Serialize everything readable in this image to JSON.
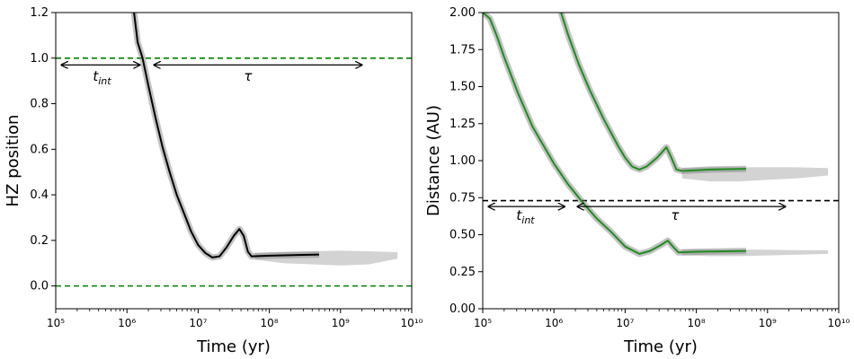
{
  "chart_data": [
    {
      "type": "line",
      "xscale": "log",
      "xlim_exp": [
        5,
        10
      ],
      "x_tick_exponents": [
        5,
        6,
        7,
        8,
        9,
        10
      ],
      "ylim": [
        -0.1,
        1.2
      ],
      "y_ticks": [
        "0.0",
        "0.2",
        "0.4",
        "0.6",
        "0.8",
        "1.0",
        "1.2"
      ],
      "xlabel": "Time (yr)",
      "ylabel": "HZ position",
      "hlines": [
        {
          "y": 1.0,
          "color": "#008000",
          "style": "dashed"
        },
        {
          "y": 0.0,
          "color": "#008000",
          "style": "dashed"
        }
      ],
      "series": [
        {
          "name": "HZ position (median track)",
          "color": "#000000",
          "points": [
            [
              6.1,
              1.2
            ],
            [
              6.15,
              1.07
            ],
            [
              6.22,
              1.0
            ],
            [
              6.3,
              0.88
            ],
            [
              6.4,
              0.74
            ],
            [
              6.5,
              0.61
            ],
            [
              6.6,
              0.5
            ],
            [
              6.7,
              0.4
            ],
            [
              6.8,
              0.32
            ],
            [
              6.9,
              0.24
            ],
            [
              7.0,
              0.18
            ],
            [
              7.1,
              0.145
            ],
            [
              7.2,
              0.125
            ],
            [
              7.3,
              0.13
            ],
            [
              7.4,
              0.17
            ],
            [
              7.5,
              0.22
            ],
            [
              7.58,
              0.25
            ],
            [
              7.64,
              0.22
            ],
            [
              7.7,
              0.15
            ],
            [
              7.75,
              0.13
            ],
            [
              8.0,
              0.133
            ],
            [
              8.4,
              0.136
            ],
            [
              8.7,
              0.138
            ]
          ]
        }
      ],
      "band": {
        "name": "ensemble spread",
        "color": "#808080",
        "x_exp": [
          7.8,
          8.2,
          8.6,
          9.0,
          9.4,
          9.8
        ],
        "lower": [
          0.115,
          0.1,
          0.095,
          0.09,
          0.095,
          0.12
        ],
        "upper": [
          0.145,
          0.15,
          0.152,
          0.155,
          0.152,
          0.148
        ]
      },
      "annotations": [
        {
          "label_main": "t",
          "label_sub": "int",
          "x_exp_from": 5.08,
          "x_exp_to": 6.18,
          "y": 0.97,
          "label_x_exp": 5.65,
          "label_y": 0.9
        },
        {
          "label_main": "τ",
          "label_sub": "",
          "x_exp_from": 6.38,
          "x_exp_to": 9.3,
          "y": 0.97,
          "label_x_exp": 7.7,
          "label_y": 0.9
        }
      ]
    },
    {
      "type": "line",
      "xscale": "log",
      "xlim_exp": [
        5,
        10
      ],
      "x_tick_exponents": [
        5,
        6,
        7,
        8,
        9,
        10
      ],
      "ylim": [
        0.0,
        2.0
      ],
      "y_ticks": [
        "0.00",
        "0.25",
        "0.50",
        "0.75",
        "1.00",
        "1.25",
        "1.50",
        "1.75",
        "2.00"
      ],
      "xlabel": "Time (yr)",
      "ylabel": "Distance (AU)",
      "hlines": [
        {
          "y": 0.73,
          "color": "#000000",
          "style": "dashed"
        }
      ],
      "series": [
        {
          "name": "outer HZ boundary",
          "color": "#228B22",
          "points": [
            [
              6.1,
              2.0
            ],
            [
              6.2,
              1.85
            ],
            [
              6.35,
              1.65
            ],
            [
              6.5,
              1.48
            ],
            [
              6.7,
              1.28
            ],
            [
              6.9,
              1.1
            ],
            [
              7.0,
              1.02
            ],
            [
              7.1,
              0.96
            ],
            [
              7.2,
              0.94
            ],
            [
              7.3,
              0.96
            ],
            [
              7.45,
              1.02
            ],
            [
              7.58,
              1.09
            ],
            [
              7.65,
              1.02
            ],
            [
              7.72,
              0.94
            ],
            [
              7.8,
              0.93
            ],
            [
              8.2,
              0.94
            ],
            [
              8.7,
              0.945
            ]
          ]
        },
        {
          "name": "inner HZ boundary",
          "color": "#228B22",
          "points": [
            [
              5.0,
              2.0
            ],
            [
              5.1,
              1.96
            ],
            [
              5.2,
              1.84
            ],
            [
              5.3,
              1.7
            ],
            [
              5.5,
              1.45
            ],
            [
              5.7,
              1.23
            ],
            [
              6.0,
              0.98
            ],
            [
              6.2,
              0.84
            ],
            [
              6.4,
              0.72
            ],
            [
              6.6,
              0.61
            ],
            [
              6.8,
              0.52
            ],
            [
              7.0,
              0.42
            ],
            [
              7.2,
              0.37
            ],
            [
              7.35,
              0.39
            ],
            [
              7.5,
              0.43
            ],
            [
              7.6,
              0.46
            ],
            [
              7.67,
              0.42
            ],
            [
              7.75,
              0.38
            ],
            [
              8.0,
              0.385
            ],
            [
              8.7,
              0.39
            ]
          ]
        }
      ],
      "band": [
        {
          "name": "ensemble spread outer",
          "color": "#808080",
          "x_exp": [
            7.8,
            8.2,
            8.6,
            9.0,
            9.4,
            9.85
          ],
          "lower": [
            0.88,
            0.86,
            0.86,
            0.87,
            0.88,
            0.9
          ],
          "upper": [
            0.95,
            0.955,
            0.955,
            0.955,
            0.955,
            0.95
          ]
        },
        {
          "name": "ensemble spread inner",
          "color": "#808080",
          "x_exp": [
            7.8,
            8.2,
            8.6,
            9.0,
            9.4,
            9.85
          ],
          "lower": [
            0.36,
            0.355,
            0.355,
            0.36,
            0.365,
            0.37
          ],
          "upper": [
            0.4,
            0.4,
            0.4,
            0.398,
            0.396,
            0.395
          ]
        }
      ],
      "annotations": [
        {
          "label_main": "t",
          "label_sub": "int",
          "x_exp_from": 5.08,
          "x_exp_to": 6.15,
          "y": 0.69,
          "label_x_exp": 5.6,
          "label_y": 0.6
        },
        {
          "label_main": "τ",
          "label_sub": "",
          "x_exp_from": 6.33,
          "x_exp_to": 9.25,
          "y": 0.69,
          "label_x_exp": 7.7,
          "label_y": 0.6
        }
      ]
    }
  ]
}
